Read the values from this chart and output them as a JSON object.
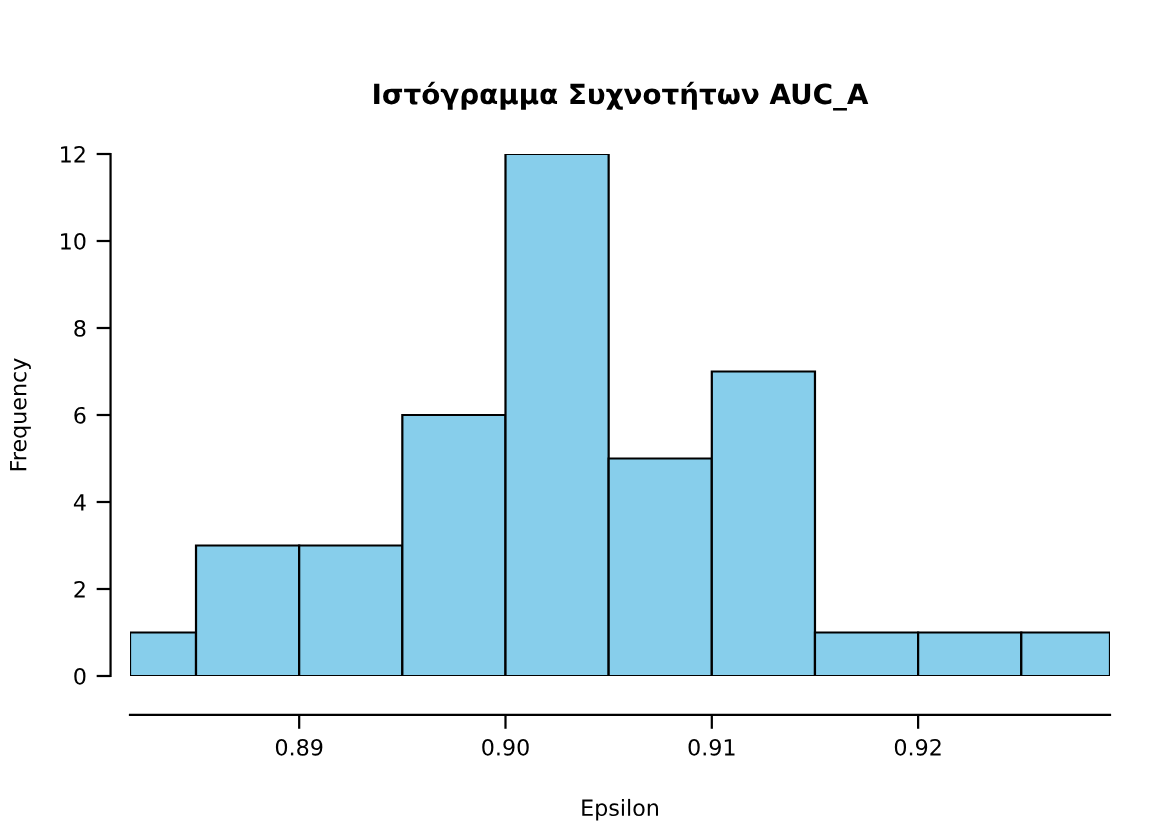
{
  "chart_data": {
    "type": "histogram",
    "title": "Ιστόγραμμα Συχνοτήτων AUC_A",
    "xlabel": "Epsilon",
    "ylabel": "Frequency",
    "bins": [
      0.8818,
      0.885,
      0.89,
      0.895,
      0.9,
      0.905,
      0.91,
      0.915,
      0.92,
      0.925,
      0.9293
    ],
    "values": [
      1,
      3,
      3,
      6,
      12,
      5,
      7,
      1,
      1,
      1
    ],
    "color": "#87ceeb",
    "xlim": [
      0.8818,
      0.9293
    ],
    "xticks": [
      {
        "value": 0.89,
        "label": "0.89"
      },
      {
        "value": 0.9,
        "label": "0.90"
      },
      {
        "value": 0.91,
        "label": "0.91"
      },
      {
        "value": 0.92,
        "label": "0.92"
      }
    ],
    "ylim": [
      0,
      12
    ],
    "yticks": [
      0,
      2,
      4,
      6,
      8,
      10,
      12
    ],
    "grid": false
  }
}
